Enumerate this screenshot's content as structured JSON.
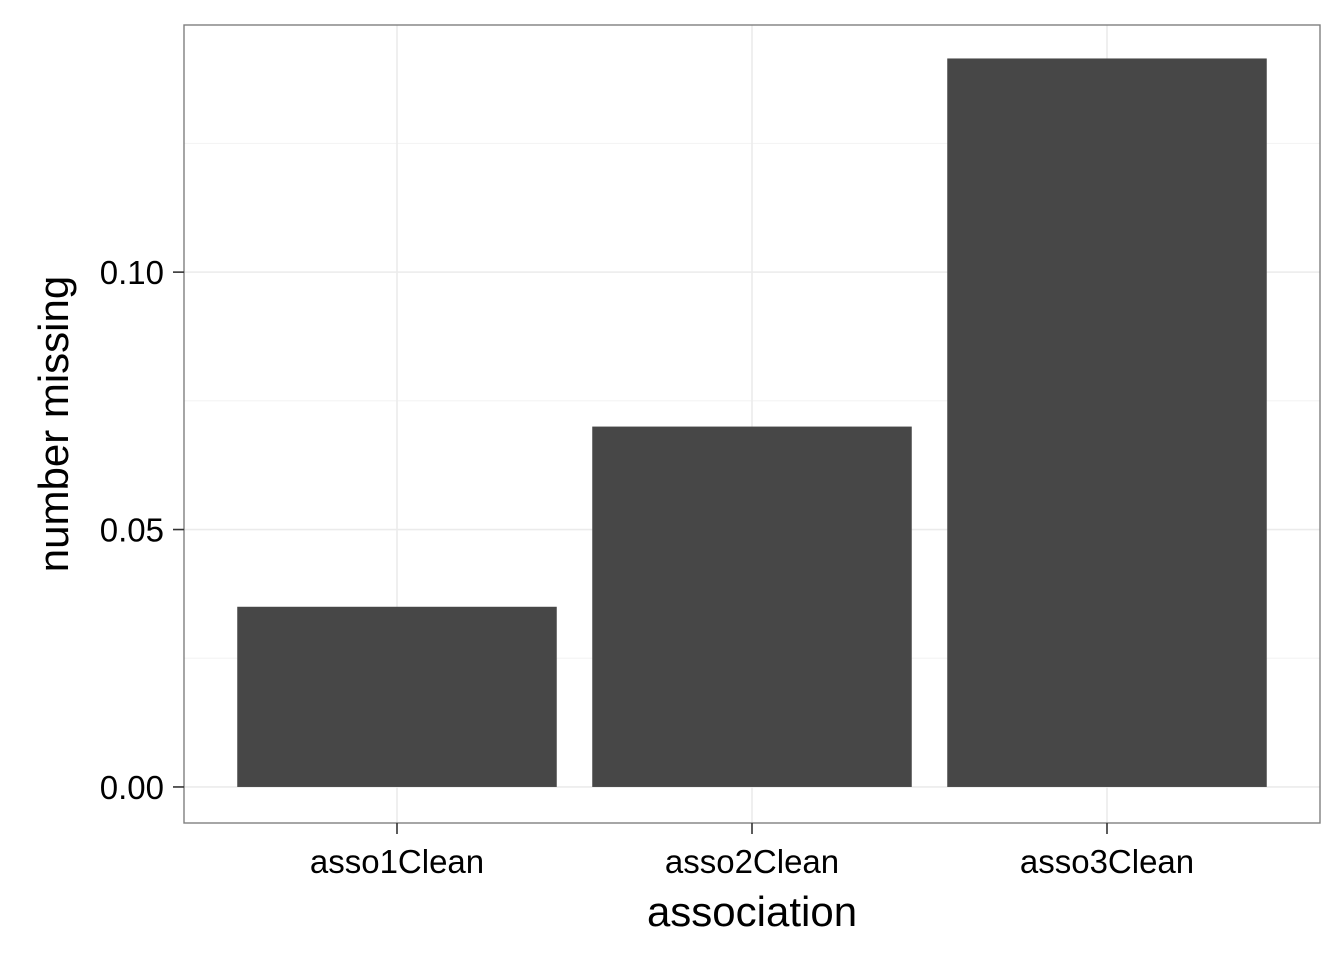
{
  "chart_data": {
    "type": "bar",
    "title": "",
    "xlabel": "association",
    "ylabel": "number missing",
    "categories": [
      "asso1Clean",
      "asso2Clean",
      "asso3Clean"
    ],
    "values": [
      0.035,
      0.07,
      0.1415
    ],
    "ylim": [
      -0.007,
      0.148
    ],
    "yticks": [
      0.0,
      0.05,
      0.1
    ],
    "ytick_labels": [
      "0.00",
      "0.05",
      "0.10"
    ],
    "grid": true,
    "legend": "none",
    "bar_color": "#474747",
    "grid_color": "#ebebeb",
    "border_color": "#7f7f7f"
  }
}
